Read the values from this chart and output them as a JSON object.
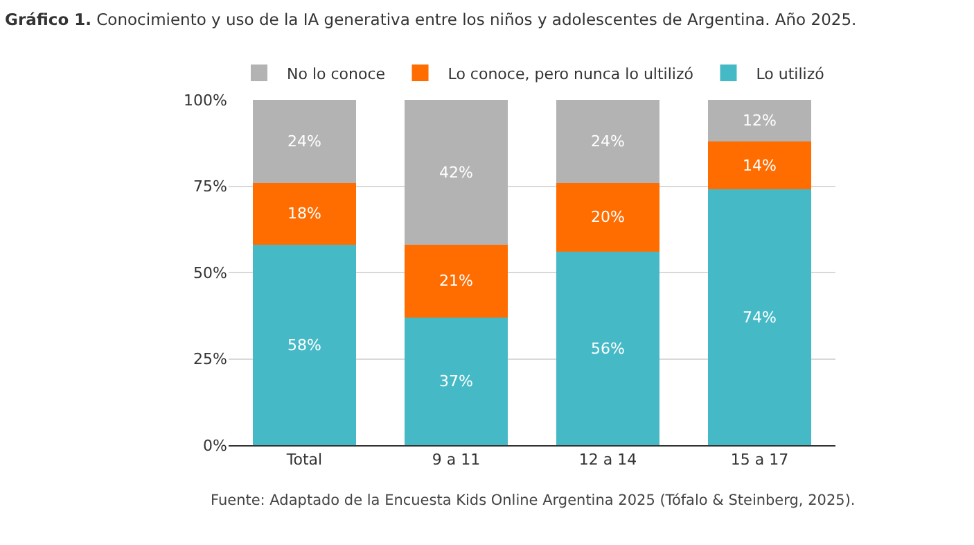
{
  "chart_data": {
    "type": "bar",
    "stacked": true,
    "title": "Gráfico 1. Conocimiento y uso de la IA generativa entre los niños y adolescentes de Argentina. Año 2025.",
    "categories": [
      "Total",
      "9 a 11",
      "12 a 14",
      "15 a 17"
    ],
    "series": [
      {
        "name": "Lo utilizó",
        "color": "#45bac6",
        "values": [
          58,
          37,
          56,
          74
        ],
        "value_labels": [
          "58%",
          "37%",
          "56%",
          "74%"
        ]
      },
      {
        "name": "Lo conoce, pero nunca lo ultilizó",
        "color": "#ff6d01",
        "values": [
          18,
          21,
          20,
          14
        ],
        "value_labels": [
          "18%",
          "21%",
          "20%",
          "14%"
        ]
      },
      {
        "name": "No lo conoce",
        "color": "#b3b3b3",
        "values": [
          24,
          42,
          24,
          12
        ],
        "value_labels": [
          "24%",
          "42%",
          "24%",
          "12%"
        ]
      }
    ],
    "ylim": [
      0,
      100
    ],
    "yticks": [
      {
        "value": 0,
        "label": "0%"
      },
      {
        "value": 25,
        "label": "25%"
      },
      {
        "value": 50,
        "label": "50%"
      },
      {
        "value": 75,
        "label": "75%"
      },
      {
        "value": 100,
        "label": "100%"
      }
    ],
    "grid": "y",
    "legend": "top",
    "annotations": [
      "Fuente: Adaptado de la Encuesta Kids Online Argentina 2025 (Tófalo & Steinberg, 2025)."
    ]
  }
}
